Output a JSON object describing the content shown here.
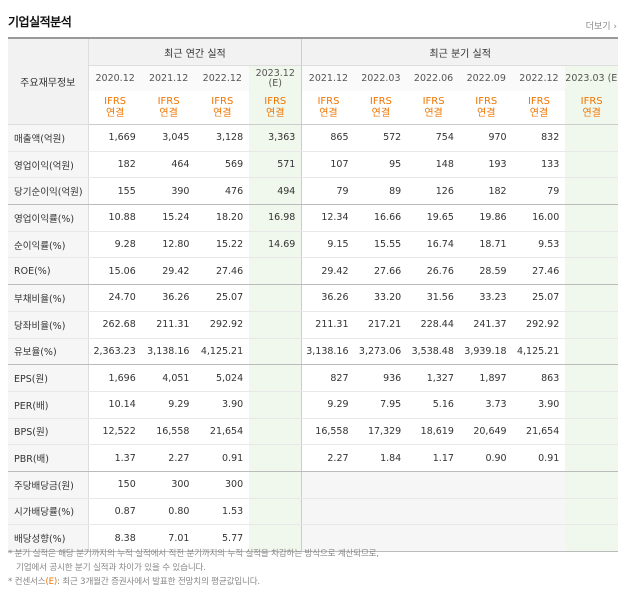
{
  "title": "기업실적분석",
  "more_label": "더보기",
  "more_arrow": "›",
  "row_head": "주요재무정보",
  "annual_label": "최근 연간 실적",
  "quarter_label": "최근 분기 실적",
  "periods": [
    {
      "top": "2020.12",
      "bottom": "",
      "est": false
    },
    {
      "top": "2021.12",
      "bottom": "",
      "est": false
    },
    {
      "top": "2022.12",
      "bottom": "",
      "est": false
    },
    {
      "top": "2023.12",
      "bottom": "(E)",
      "est": true
    },
    {
      "top": "2021.12",
      "bottom": "",
      "est": false
    },
    {
      "top": "2022.03",
      "bottom": "",
      "est": false
    },
    {
      "top": "2022.06",
      "bottom": "",
      "est": false
    },
    {
      "top": "2022.09",
      "bottom": "",
      "est": false
    },
    {
      "top": "2022.12",
      "bottom": "",
      "est": false
    },
    {
      "top": "2023.03 (E)",
      "bottom": "",
      "est": true
    }
  ],
  "ifrs_top": "IFRS",
  "ifrs_bottom": "연결",
  "rows": [
    {
      "label": "매출액(억원)",
      "group_end": false,
      "values": [
        "1,669",
        "3,045",
        "3,128",
        "3,363",
        "865",
        "572",
        "754",
        "970",
        "832",
        ""
      ]
    },
    {
      "label": "영업이익(억원)",
      "group_end": false,
      "values": [
        "182",
        "464",
        "569",
        "571",
        "107",
        "95",
        "148",
        "193",
        "133",
        ""
      ]
    },
    {
      "label": "당기순이익(억원)",
      "group_end": true,
      "values": [
        "155",
        "390",
        "476",
        "494",
        "79",
        "89",
        "126",
        "182",
        "79",
        ""
      ]
    },
    {
      "label": "영업이익률(%)",
      "group_end": false,
      "values": [
        "10.88",
        "15.24",
        "18.20",
        "16.98",
        "12.34",
        "16.66",
        "19.65",
        "19.86",
        "16.00",
        ""
      ]
    },
    {
      "label": "순이익률(%)",
      "group_end": false,
      "values": [
        "9.28",
        "12.80",
        "15.22",
        "14.69",
        "9.15",
        "15.55",
        "16.74",
        "18.71",
        "9.53",
        ""
      ]
    },
    {
      "label": "ROE(%)",
      "group_end": true,
      "values": [
        "15.06",
        "29.42",
        "27.46",
        "",
        "29.42",
        "27.66",
        "26.76",
        "28.59",
        "27.46",
        ""
      ]
    },
    {
      "label": "부채비율(%)",
      "group_end": false,
      "values": [
        "24.70",
        "36.26",
        "25.07",
        "",
        "36.26",
        "33.20",
        "31.56",
        "33.23",
        "25.07",
        ""
      ]
    },
    {
      "label": "당좌비율(%)",
      "group_end": false,
      "values": [
        "262.68",
        "211.31",
        "292.92",
        "",
        "211.31",
        "217.21",
        "228.44",
        "241.37",
        "292.92",
        ""
      ]
    },
    {
      "label": "유보율(%)",
      "group_end": true,
      "values": [
        "2,363.23",
        "3,138.16",
        "4,125.21",
        "",
        "3,138.16",
        "3,273.06",
        "3,538.48",
        "3,939.18",
        "4,125.21",
        ""
      ]
    },
    {
      "label": "EPS(원)",
      "group_end": false,
      "values": [
        "1,696",
        "4,051",
        "5,024",
        "",
        "827",
        "936",
        "1,327",
        "1,897",
        "863",
        ""
      ]
    },
    {
      "label": "PER(배)",
      "group_end": false,
      "values": [
        "10.14",
        "9.29",
        "3.90",
        "",
        "9.29",
        "7.95",
        "5.16",
        "3.73",
        "3.90",
        ""
      ]
    },
    {
      "label": "BPS(원)",
      "group_end": false,
      "values": [
        "12,522",
        "16,558",
        "21,654",
        "",
        "16,558",
        "17,329",
        "18,619",
        "20,649",
        "21,654",
        ""
      ]
    },
    {
      "label": "PBR(배)",
      "group_end": true,
      "values": [
        "1.37",
        "2.27",
        "0.91",
        "",
        "2.27",
        "1.84",
        "1.17",
        "0.90",
        "0.91",
        ""
      ]
    },
    {
      "label": "주당배당금(원)",
      "group_end": false,
      "values": [
        "150",
        "300",
        "300",
        "",
        "",
        "",
        "",
        "",
        "",
        ""
      ]
    },
    {
      "label": "시가배당률(%)",
      "group_end": false,
      "values": [
        "0.87",
        "0.80",
        "1.53",
        "",
        "",
        "",
        "",
        "",
        "",
        ""
      ]
    },
    {
      "label": "배당성향(%)",
      "group_end": true,
      "values": [
        "8.38",
        "7.01",
        "5.77",
        "",
        "",
        "",
        "",
        "",
        "",
        ""
      ]
    }
  ],
  "notes": {
    "line1": "* 분기 실적은 해당 분기까지의 누적 실적에서 직전 분기까지의 누적 실적을 차감하는 방식으로 계산되므로,",
    "line2": "기업에서 공시한 분기 실적과 차이가 있을 수 있습니다.",
    "line3_prefix": "* 컨센서스",
    "line3_e": "(E)",
    "line3_suffix": ": 최근 3개월간 증권사에서 발표한 전망치의 평균값입니다."
  }
}
